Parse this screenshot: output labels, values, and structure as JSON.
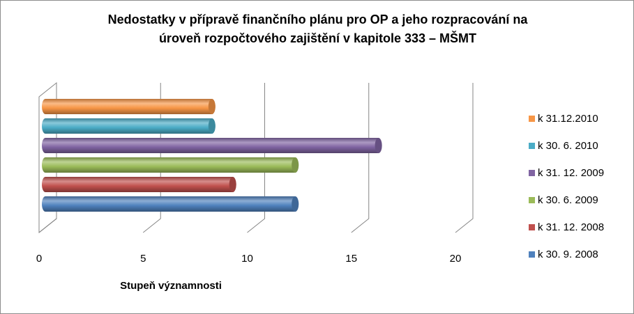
{
  "chart_data": {
    "type": "bar",
    "orientation": "horizontal",
    "three_d": true,
    "title_lines": [
      "Nedostatky v přípravě finančního plánu pro OP a jeho rozpracování na",
      "úroveň rozpočtového zajištění v kapitole 333 – MŠMT"
    ],
    "xlabel": "Stupeň významnosti",
    "ylabel": "",
    "xlim": [
      0,
      20
    ],
    "x_ticks": [
      "0",
      "5",
      "10",
      "15",
      "20"
    ],
    "grid": true,
    "legend_position": "right",
    "series": [
      {
        "name": "k 30. 9. 2008",
        "value": 12,
        "color": "#4f81bd"
      },
      {
        "name": "k 31. 12. 2008",
        "value": 9,
        "color": "#c0504d"
      },
      {
        "name": "k 30. 6. 2009",
        "value": 12,
        "color": "#9bbb59"
      },
      {
        "name": "k 31. 12. 2009",
        "value": 16,
        "color": "#8064a2"
      },
      {
        "name": "k 30. 6. 2010",
        "value": 8,
        "color": "#4bacc6"
      },
      {
        "name": "k 31.12.2010",
        "value": 8,
        "color": "#f79646"
      }
    ]
  }
}
